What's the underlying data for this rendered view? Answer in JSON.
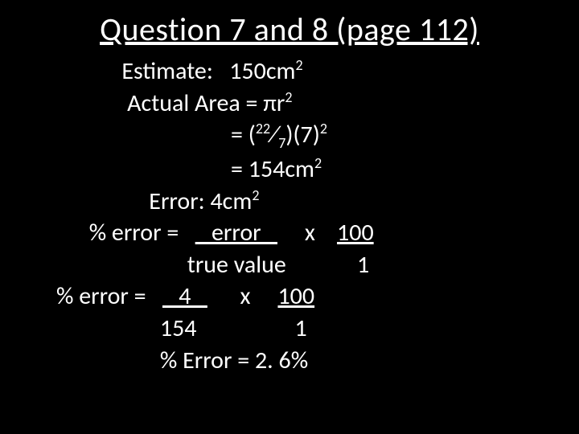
{
  "title": "Question 7 and 8 (page 112)",
  "lines": {
    "l1a": "            Estimate:   150cm",
    "l1b": "2",
    "l2a": "             Actual Area = πr",
    "l2b": "2",
    "l3a": "                                = (",
    "l3b": "22",
    "l3c": "⁄",
    "l3d": "7",
    "l3e": ")(7)",
    "l3f": "2",
    "l4a": "                                = 154cm",
    "l4b": "2",
    "l5a": "                 Error: 4cm",
    "l5b": "2",
    "l6a": "      % error =   ",
    "l6b": "   error   ",
    "l6c": "     x    ",
    "l6d": "100",
    "l7a": "                        true value             1",
    "l8a": "% error =   ",
    "l8b": "   4   ",
    "l8c": "      x     ",
    "l8d": "100",
    "l9a": "                   154                  1",
    "l10": "                   % Error = 2. 6%"
  },
  "colors": {
    "background": "#000000",
    "text": "#ffffff"
  },
  "typography": {
    "title_fontsize": 40,
    "body_fontsize": 30,
    "font_family": "Calibri"
  }
}
